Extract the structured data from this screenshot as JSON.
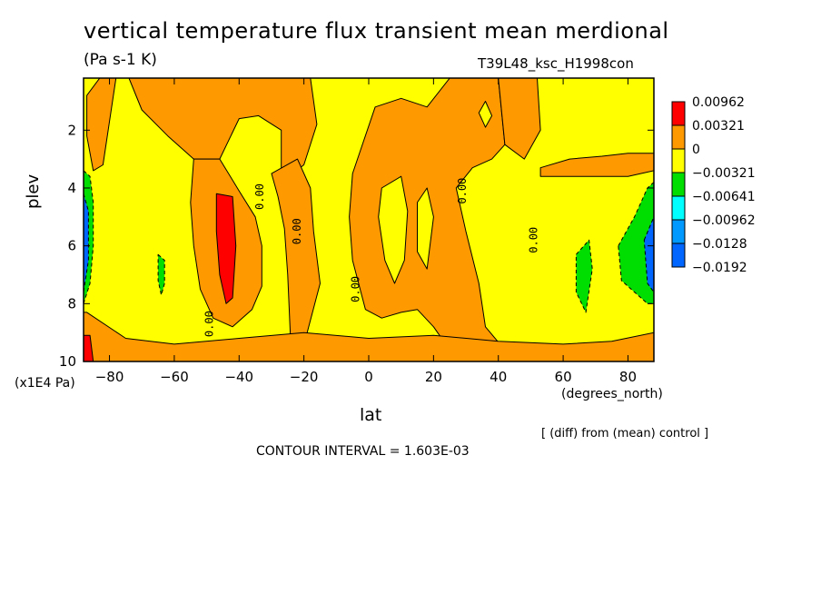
{
  "header": {
    "title": "vertical temperature flux transient mean merdional",
    "units": "(Pa s-1 K)",
    "experiment": "T39L48_ksc_H1998con"
  },
  "footer": {
    "diff_note": "[ (diff) from (mean) control ]",
    "contour_interval": "CONTOUR INTERVAL = 1.603E-03"
  },
  "chart_data": {
    "type": "heatmap",
    "title": "vertical temperature flux transient mean merdional",
    "subtitle": "(Pa s-1 K)",
    "xlabel": "lat",
    "x_units": "(degrees_north)",
    "ylabel": "plev",
    "y_units": "(x1E4 Pa)",
    "xlim": [
      -88,
      88
    ],
    "ylim": [
      10,
      0.2
    ],
    "x_ticks": [
      -80,
      -60,
      -40,
      -20,
      0,
      20,
      40,
      60,
      80
    ],
    "x_tick_labels": [
      "−80",
      "−60",
      "−40",
      "−20",
      "0",
      "20",
      "40",
      "60",
      "80"
    ],
    "y_ticks": [
      2,
      4,
      6,
      8,
      10
    ],
    "y_tick_labels": [
      "2",
      "4",
      "6",
      "8",
      "10"
    ],
    "contour_label": "0.00",
    "colorbar": {
      "levels": [
        "0.00962",
        "0.00321",
        "0",
        "−0.00321",
        "−0.00641",
        "−0.00962",
        "−0.0128",
        "−0.0192"
      ],
      "colors": [
        "#ff0000",
        "#ff9900",
        "#ffff00",
        "#00dd00",
        "#00ffff",
        "#0099ff",
        "#0066ff"
      ]
    },
    "background_color": "#ffff00",
    "regions": [
      {
        "fill": "#ff9900",
        "pts": [
          [
            -83,
            0.2
          ],
          [
            -78,
            0.2
          ],
          [
            -82,
            3.2
          ],
          [
            -85,
            3.4
          ],
          [
            -87,
            2.2
          ],
          [
            -87,
            0.8
          ]
        ]
      },
      {
        "fill": "#ff9900",
        "pts": [
          [
            -74,
            0.2
          ],
          [
            -18,
            0.2
          ],
          [
            -16,
            1.8
          ],
          [
            -20,
            3.2
          ],
          [
            -27,
            3.8
          ],
          [
            -27,
            2.0
          ],
          [
            -34,
            1.5
          ],
          [
            -40,
            1.6
          ],
          [
            -46,
            3.0
          ],
          [
            -54,
            3.0
          ],
          [
            -62,
            2.2
          ],
          [
            -70,
            1.3
          ]
        ]
      },
      {
        "fill": "#ff9900",
        "pts": [
          [
            -54,
            3.0
          ],
          [
            -46,
            3.0
          ],
          [
            -40,
            4.1
          ],
          [
            -35,
            5.0
          ],
          [
            -33,
            6.0
          ],
          [
            -33,
            7.4
          ],
          [
            -36,
            8.2
          ],
          [
            -42,
            8.8
          ],
          [
            -48,
            8.5
          ],
          [
            -52,
            7.5
          ],
          [
            -54,
            6.0
          ],
          [
            -55,
            4.5
          ]
        ]
      },
      {
        "fill": "#ff9900",
        "pts": [
          [
            -30,
            3.5
          ],
          [
            -22,
            3.0
          ],
          [
            -18,
            4.0
          ],
          [
            -17,
            5.5
          ],
          [
            -15,
            7.3
          ],
          [
            -19,
            9.0
          ],
          [
            -20,
            9.6
          ],
          [
            -24,
            9.6
          ],
          [
            -25,
            7.0
          ],
          [
            -26,
            5.4
          ],
          [
            -28,
            4.3
          ]
        ]
      },
      {
        "fill": "#ff9900",
        "pts": [
          [
            -5,
            3.5
          ],
          [
            2,
            1.2
          ],
          [
            10,
            0.9
          ],
          [
            18,
            1.2
          ],
          [
            25,
            0.2
          ],
          [
            40,
            0.2
          ],
          [
            42,
            2.5
          ],
          [
            38,
            3.0
          ],
          [
            32,
            3.3
          ],
          [
            27,
            4.0
          ],
          [
            30,
            5.5
          ],
          [
            34,
            7.3
          ],
          [
            36,
            8.8
          ],
          [
            42,
            9.6
          ],
          [
            25,
            9.6
          ],
          [
            20,
            8.8
          ],
          [
            15,
            8.2
          ],
          [
            10,
            8.3
          ],
          [
            4,
            8.5
          ],
          [
            -1,
            8.2
          ],
          [
            -5,
            6.5
          ],
          [
            -6,
            5.0
          ]
        ]
      },
      {
        "fill": "#ffff00",
        "pts": [
          [
            4,
            4.0
          ],
          [
            10,
            3.6
          ],
          [
            12,
            4.8
          ],
          [
            11,
            6.5
          ],
          [
            8,
            7.3
          ],
          [
            5,
            6.5
          ],
          [
            3,
            5.0
          ]
        ]
      },
      {
        "fill": "#ffff00",
        "pts": [
          [
            15,
            4.5
          ],
          [
            18,
            4.0
          ],
          [
            20,
            5.0
          ],
          [
            18,
            6.8
          ],
          [
            15,
            6.2
          ]
        ]
      },
      {
        "fill": "#ffff00",
        "pts": [
          [
            34,
            1.4
          ],
          [
            36,
            1.0
          ],
          [
            38,
            1.5
          ],
          [
            36,
            1.9
          ]
        ]
      },
      {
        "fill": "#ff9900",
        "pts": [
          [
            40,
            0.2
          ],
          [
            52,
            0.2
          ],
          [
            53,
            2.0
          ],
          [
            48,
            3.0
          ],
          [
            42,
            2.5
          ]
        ]
      },
      {
        "fill": "#ff9900",
        "pts": [
          [
            53,
            3.3
          ],
          [
            62,
            3.0
          ],
          [
            72,
            2.9
          ],
          [
            80,
            2.8
          ],
          [
            88,
            2.8
          ],
          [
            88,
            3.4
          ],
          [
            80,
            3.6
          ],
          [
            70,
            3.6
          ],
          [
            60,
            3.6
          ],
          [
            53,
            3.6
          ]
        ]
      },
      {
        "fill": "#ff9900",
        "pts": [
          [
            -87,
            8.3
          ],
          [
            -75,
            9.2
          ],
          [
            -60,
            9.4
          ],
          [
            -40,
            9.2
          ],
          [
            -20,
            9.0
          ],
          [
            0,
            9.2
          ],
          [
            20,
            9.1
          ],
          [
            40,
            9.3
          ],
          [
            60,
            9.4
          ],
          [
            75,
            9.3
          ],
          [
            88,
            9.0
          ],
          [
            88,
            10
          ],
          [
            -88,
            10
          ],
          [
            -88,
            8.3
          ]
        ]
      },
      {
        "fill": "#ff0000",
        "pts": [
          [
            -88,
            9.1
          ],
          [
            -86,
            9.1
          ],
          [
            -85,
            10
          ],
          [
            -88,
            10
          ]
        ]
      },
      {
        "fill": "#ff0000",
        "pts": [
          [
            -47,
            4.2
          ],
          [
            -42,
            4.3
          ],
          [
            -41,
            6.0
          ],
          [
            -42,
            7.8
          ],
          [
            -44,
            8.0
          ],
          [
            -46,
            7.0
          ],
          [
            -47,
            5.5
          ]
        ]
      },
      {
        "fill": "#00dd00",
        "pts": [
          [
            -88,
            3.4
          ],
          [
            -86,
            3.6
          ],
          [
            -85,
            4.5
          ],
          [
            -85,
            6.0
          ],
          [
            -86,
            7.3
          ],
          [
            -88,
            8.0
          ]
        ]
      },
      {
        "fill": "#0066ff",
        "pts": [
          [
            -88,
            4.2
          ],
          [
            -86.5,
            4.8
          ],
          [
            -86.5,
            6.5
          ],
          [
            -88,
            7.6
          ]
        ]
      },
      {
        "fill": "#00dd00",
        "pts": [
          [
            -65,
            6.3
          ],
          [
            -63,
            6.5
          ],
          [
            -63,
            7.3
          ],
          [
            -64,
            7.7
          ],
          [
            -65,
            7.2
          ]
        ]
      },
      {
        "fill": "#00dd00",
        "pts": [
          [
            64,
            6.3
          ],
          [
            68,
            5.8
          ],
          [
            69,
            6.8
          ],
          [
            67,
            8.3
          ],
          [
            64,
            7.6
          ]
        ]
      },
      {
        "fill": "#00dd00",
        "pts": [
          [
            77,
            6.0
          ],
          [
            82,
            5.0
          ],
          [
            86,
            4.0
          ],
          [
            88,
            3.8
          ],
          [
            88,
            8.0
          ],
          [
            86,
            8.0
          ],
          [
            83,
            7.7
          ],
          [
            78,
            7.2
          ]
        ]
      },
      {
        "fill": "#0066ff",
        "pts": [
          [
            85,
            5.8
          ],
          [
            88,
            5.0
          ],
          [
            88,
            7.6
          ],
          [
            86,
            7.3
          ]
        ]
      }
    ],
    "zero_contour_labels": [
      {
        "lat": -32.5,
        "plev": 4.3
      },
      {
        "lat": -21,
        "plev": 5.5
      },
      {
        "lat": -48,
        "plev": 8.7
      },
      {
        "lat": -3,
        "plev": 7.5
      },
      {
        "lat": 30,
        "plev": 4.1
      },
      {
        "lat": 52,
        "plev": 5.8
      }
    ]
  }
}
